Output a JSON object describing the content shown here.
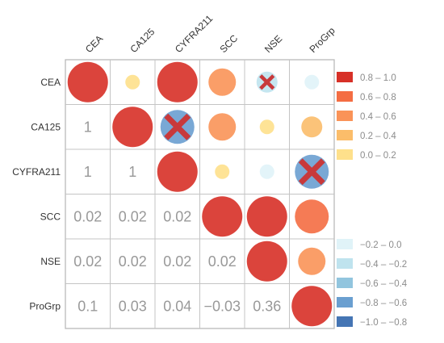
{
  "chart_data": {
    "type": "heatmap",
    "subtype": "correlation-matrix",
    "variables": [
      "CEA",
      "CA125",
      "CYFRA211",
      "SCC",
      "NSE",
      "ProGrp"
    ],
    "upper_triangle": [
      {
        "row": "CEA",
        "col": "CEA",
        "bin": "0.8 – 1.0",
        "crossed": false
      },
      {
        "row": "CEA",
        "col": "CA125",
        "bin": "0.0 – 0.2",
        "crossed": false
      },
      {
        "row": "CEA",
        "col": "CYFRA211",
        "bin": "0.8 – 1.0",
        "crossed": false
      },
      {
        "row": "CEA",
        "col": "SCC",
        "bin": "0.4 – 0.6",
        "crossed": false
      },
      {
        "row": "CEA",
        "col": "NSE",
        "bin": "−0.4 – −0.2",
        "crossed": true
      },
      {
        "row": "CEA",
        "col": "ProGrp",
        "bin": "−0.2 – 0.0",
        "crossed": false
      },
      {
        "row": "CA125",
        "col": "CA125",
        "bin": "0.8 – 1.0",
        "crossed": false
      },
      {
        "row": "CA125",
        "col": "CYFRA211",
        "bin": "−0.8 – −0.6",
        "crossed": true
      },
      {
        "row": "CA125",
        "col": "SCC",
        "bin": "0.4 – 0.6",
        "crossed": false
      },
      {
        "row": "CA125",
        "col": "NSE",
        "bin": "0.0 – 0.2",
        "crossed": false
      },
      {
        "row": "CA125",
        "col": "ProGrp",
        "bin": "0.2 – 0.4",
        "crossed": false
      },
      {
        "row": "CYFRA211",
        "col": "CYFRA211",
        "bin": "0.8 – 1.0",
        "crossed": false
      },
      {
        "row": "CYFRA211",
        "col": "SCC",
        "bin": "0.0 – 0.2",
        "crossed": false
      },
      {
        "row": "CYFRA211",
        "col": "NSE",
        "bin": "−0.2 – 0.0",
        "crossed": false
      },
      {
        "row": "CYFRA211",
        "col": "ProGrp",
        "bin": "−0.8 – −0.6",
        "crossed": true
      },
      {
        "row": "SCC",
        "col": "SCC",
        "bin": "0.8 – 1.0",
        "crossed": false
      },
      {
        "row": "SCC",
        "col": "NSE",
        "bin": "0.8 – 1.0",
        "crossed": false
      },
      {
        "row": "SCC",
        "col": "ProGrp",
        "bin": "0.6 – 0.8",
        "crossed": false
      },
      {
        "row": "NSE",
        "col": "NSE",
        "bin": "0.8 – 1.0",
        "crossed": false
      },
      {
        "row": "NSE",
        "col": "ProGrp",
        "bin": "0.4 – 0.6",
        "crossed": false
      },
      {
        "row": "ProGrp",
        "col": "ProGrp",
        "bin": "0.8 – 1.0",
        "crossed": false
      }
    ],
    "lower_triangle": [
      {
        "row": "CA125",
        "col": "CEA",
        "text": "1"
      },
      {
        "row": "CYFRA211",
        "col": "CEA",
        "text": "1"
      },
      {
        "row": "CYFRA211",
        "col": "CA125",
        "text": "1"
      },
      {
        "row": "SCC",
        "col": "CEA",
        "text": "0.02"
      },
      {
        "row": "SCC",
        "col": "CA125",
        "text": "0.02"
      },
      {
        "row": "SCC",
        "col": "CYFRA211",
        "text": "0.02"
      },
      {
        "row": "NSE",
        "col": "CEA",
        "text": "0.02"
      },
      {
        "row": "NSE",
        "col": "CA125",
        "text": "0.02"
      },
      {
        "row": "NSE",
        "col": "CYFRA211",
        "text": "0.02"
      },
      {
        "row": "NSE",
        "col": "SCC",
        "text": "0.02"
      },
      {
        "row": "ProGrp",
        "col": "CEA",
        "text": "0.1"
      },
      {
        "row": "ProGrp",
        "col": "CA125",
        "text": "0.03"
      },
      {
        "row": "ProGrp",
        "col": "CYFRA211",
        "text": "0.04"
      },
      {
        "row": "ProGrp",
        "col": "SCC",
        "text": "−0.03"
      },
      {
        "row": "ProGrp",
        "col": "NSE",
        "text": "0.36"
      }
    ],
    "legend_positive": [
      {
        "label": "0.8 – 1.0",
        "color": "#d73027"
      },
      {
        "label": "0.6 – 0.8",
        "color": "#f46d43"
      },
      {
        "label": "0.4 – 0.6",
        "color": "#fa9358"
      },
      {
        "label": "0.2 – 0.4",
        "color": "#fbbd6a"
      },
      {
        "label": "0.0 – 0.2",
        "color": "#fee08b"
      }
    ],
    "legend_negative": [
      {
        "label": "−0.2 – 0.0",
        "color": "#e0f3f8"
      },
      {
        "label": "−0.4 – −0.2",
        "color": "#bfe3ee"
      },
      {
        "label": "−0.6 – −0.4",
        "color": "#92c5de"
      },
      {
        "label": "−0.8 – −0.6",
        "color": "#6a9fd0"
      },
      {
        "label": "−1.0 – −0.8",
        "color": "#4575b4"
      }
    ],
    "legend_placement": "right",
    "cross_color": "#c8393b",
    "grid": true
  }
}
